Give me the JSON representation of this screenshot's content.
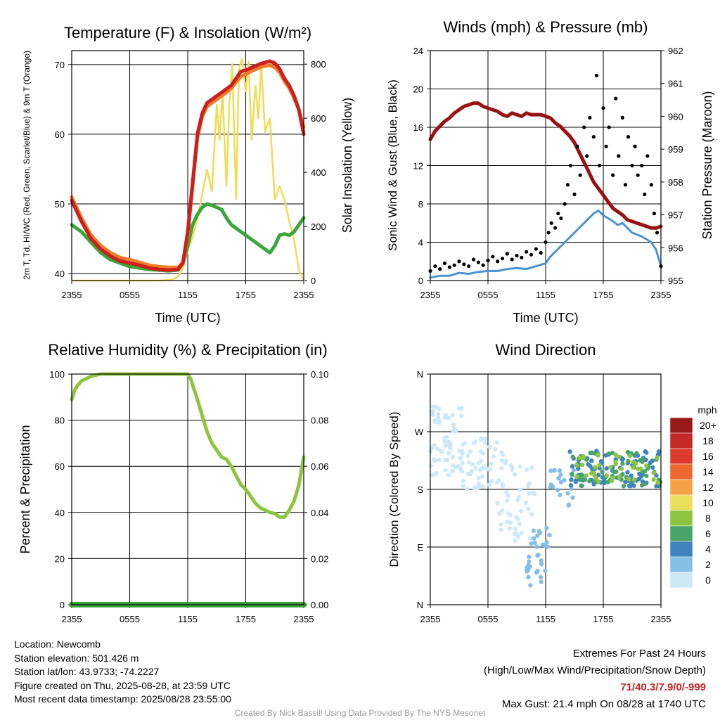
{
  "colors": {
    "temp": "#cc1f1f",
    "nine_m": "#f07b28",
    "dewpoint": "#3aa63a",
    "insolation": "#f1dc55",
    "wind": "#4b93d1",
    "gust": "#000000",
    "pressure": "#991111",
    "rh": "#8cc63f",
    "precip": "#3aa03a"
  },
  "info": {
    "location": "Location: Newcomb",
    "elevation": "Station elevation: 501.426 m",
    "latlon": "Station lat/lon: 43.9733; -74.2227",
    "created": "Figure created on Thu, 2025-08-28, at 23:59 UTC",
    "recent": "Most recent data timestamp: 2025/08/28 23:55:00"
  },
  "extremes": {
    "title": "Extremes For Past 24 Hours",
    "subtitle": "(High/Low/Max Wind/Precipitation/Snow Depth)",
    "values": "71/40.3/7.9/0/-999",
    "gust": "Max Gust: 21.4 mph On 08/28 at 1740 UTC"
  },
  "credit": "Created By Nick Bassill Using Data Provided By The NYS Mesonet",
  "chart_data": [
    {
      "type": "line",
      "title": "Temperature (F) & Insolation (W/m²)",
      "xlabel": "Time (UTC)",
      "ylabel": "2m T, Td, HI/WC (Red, Green, Scarlet/Blue) & 9m T (Orange)",
      "ylabel2": "Solar Insolation (Yellow)",
      "x_ticks": [
        "2355",
        "0555",
        "1155",
        "1755",
        "2355"
      ],
      "ylim": [
        39,
        72
      ],
      "y_ticks": [
        40,
        50,
        60,
        70
      ],
      "ylim2": [
        0,
        850
      ],
      "y2_ticks": [
        0,
        200,
        400,
        600,
        800
      ],
      "grid": true,
      "series": [
        {
          "key": "temp",
          "axis": "left",
          "x": [
            0,
            1,
            2,
            3,
            4,
            5,
            6,
            7,
            8,
            9,
            10,
            11,
            11.5,
            12,
            12.5,
            13,
            13.5,
            14,
            15,
            15.5,
            16,
            16.5,
            17,
            17.5,
            18,
            18.5,
            19,
            19.5,
            20,
            20.5,
            21,
            21.5,
            22,
            22.5,
            23,
            23.5,
            24
          ],
          "y": [
            50.5,
            47.5,
            45,
            43.5,
            42.5,
            41.8,
            41.5,
            41.2,
            40.8,
            40.6,
            40.5,
            40.6,
            41.5,
            46,
            53,
            60,
            63,
            64.5,
            65.5,
            66,
            66.5,
            67,
            68,
            69,
            69.2,
            69.5,
            69.8,
            70.1,
            70.3,
            70.5,
            70.2,
            69.4,
            68,
            67,
            65.5,
            63.5,
            60
          ]
        },
        {
          "key": "nine_m",
          "axis": "left",
          "x": [
            0,
            1,
            2,
            3,
            4,
            5,
            6,
            7,
            8,
            9,
            10,
            11,
            11.5,
            12,
            12.5,
            13,
            13.5,
            14,
            15,
            15.5,
            16,
            16.5,
            17,
            17.5,
            18,
            18.5,
            19,
            19.5,
            20,
            20.5,
            21,
            21.5,
            22,
            22.5,
            23,
            23.5,
            24
          ],
          "y": [
            51,
            48,
            45.5,
            44,
            43,
            42.3,
            42,
            41.6,
            41.2,
            41,
            40.9,
            40.9,
            41.6,
            45.5,
            52.5,
            59.5,
            62.5,
            64,
            65,
            65.5,
            66,
            66.6,
            67.5,
            68.3,
            68.6,
            69,
            69.3,
            69.6,
            69.8,
            69.9,
            69.6,
            68.9,
            67.6,
            66.6,
            65.2,
            63.5,
            61
          ]
        },
        {
          "key": "dewpoint",
          "axis": "left",
          "x": [
            0,
            1,
            2,
            3,
            4,
            5,
            6,
            7,
            8,
            9,
            10,
            11,
            11.5,
            12,
            12.5,
            13,
            13.5,
            14,
            14.5,
            15,
            15.5,
            16,
            16.5,
            17,
            17.5,
            18,
            18.5,
            19,
            19.5,
            20,
            20.5,
            21,
            21.5,
            22,
            22.5,
            23,
            23.5,
            24
          ],
          "y": [
            47,
            46,
            44.5,
            43,
            42,
            41.5,
            41,
            40.8,
            40.6,
            40.5,
            40.4,
            40.5,
            41.5,
            44,
            47,
            48.5,
            49.5,
            50,
            49.8,
            49.5,
            49.2,
            48,
            47,
            46.5,
            46,
            45.5,
            45,
            44.5,
            44,
            43.5,
            43,
            44,
            45.5,
            45.7,
            45.5,
            46,
            47,
            48
          ]
        },
        {
          "key": "insolation",
          "axis": "right",
          "x": [
            0,
            9,
            10,
            10.5,
            11,
            11.5,
            12,
            12.5,
            13,
            13.5,
            14,
            14.5,
            15,
            15.3,
            15.6,
            16,
            16.3,
            16.6,
            17,
            17.3,
            17.6,
            18,
            18.3,
            18.6,
            19,
            19.3,
            19.6,
            20,
            20.5,
            21,
            21.5,
            22,
            22.5,
            23,
            23.5,
            24
          ],
          "y": [
            0,
            0,
            2,
            5,
            15,
            45,
            110,
            160,
            230,
            320,
            410,
            330,
            650,
            520,
            700,
            350,
            650,
            800,
            300,
            780,
            820,
            700,
            810,
            520,
            720,
            600,
            800,
            550,
            600,
            300,
            350,
            300,
            220,
            150,
            40,
            0
          ]
        }
      ]
    },
    {
      "type": "line",
      "title": "Winds (mph) & Pressure (mb)",
      "xlabel": "Time (UTC)",
      "ylabel": "Sonic Wind & Gust (Blue, Black)",
      "ylabel2": "Station Pressure (Maroon)",
      "x_ticks": [
        "2355",
        "0555",
        "1155",
        "1755",
        "2355"
      ],
      "ylim": [
        0,
        24
      ],
      "y_ticks": [
        0,
        4,
        8,
        12,
        16,
        20,
        24
      ],
      "ylim2": [
        955,
        962
      ],
      "y2_ticks": [
        955,
        956,
        957,
        958,
        959,
        960,
        961,
        962
      ],
      "grid": true,
      "series": [
        {
          "key": "wind",
          "name": "Sonic Wind",
          "axis": "left",
          "x": [
            0,
            1,
            2,
            3,
            4,
            5,
            6,
            7,
            8,
            9,
            10,
            11,
            12,
            12.5,
            13,
            13.5,
            14,
            14.5,
            15,
            15.5,
            16,
            16.5,
            17,
            17.5,
            18,
            18.5,
            19,
            19.5,
            20,
            20.5,
            21,
            21.5,
            22,
            22.5,
            23,
            23.5,
            24
          ],
          "y": [
            0.3,
            0.5,
            0.5,
            0.8,
            0.7,
            0.9,
            1,
            1,
            1.2,
            1.3,
            1.2,
            1.5,
            1.8,
            2.5,
            3,
            3.5,
            4,
            4.5,
            5,
            5.5,
            6,
            6.5,
            7,
            7.3,
            6.8,
            6.5,
            6.2,
            5.8,
            6,
            5.5,
            5,
            4.8,
            4.6,
            4.3,
            4,
            3.2,
            1.5
          ]
        },
        {
          "key": "gust",
          "name": "Gust",
          "axis": "left",
          "x": [
            0,
            0.5,
            1,
            1.5,
            2,
            2.5,
            3,
            3.5,
            4,
            4.5,
            5,
            5.5,
            6,
            6.5,
            7,
            7.5,
            8,
            8.5,
            9,
            9.5,
            10,
            10.5,
            11,
            11.5,
            12,
            12.3,
            12.6,
            13,
            13.3,
            13.6,
            14,
            14.3,
            14.6,
            15,
            15.3,
            15.6,
            16,
            16.3,
            16.6,
            17,
            17.3,
            17.6,
            18,
            18.3,
            18.6,
            19,
            19.3,
            19.6,
            20,
            20.3,
            20.6,
            21,
            21.3,
            21.6,
            22,
            22.3,
            22.6,
            23,
            23.3,
            23.6,
            24
          ],
          "y": [
            1,
            1.5,
            1.2,
            1.8,
            1.4,
            1.6,
            2,
            1.7,
            1.5,
            2.2,
            1.9,
            1.6,
            2.1,
            2.5,
            2,
            2.3,
            2.8,
            2.2,
            2.6,
            2.4,
            3,
            2.7,
            3.3,
            2.9,
            4,
            5,
            6,
            5.5,
            7,
            6.5,
            8,
            10,
            12,
            9,
            14,
            11,
            16,
            13,
            17,
            15,
            21.4,
            12,
            18,
            14,
            16,
            11,
            19,
            13,
            17,
            10,
            15,
            12,
            14,
            11,
            12,
            9,
            13,
            10,
            7,
            5,
            1.5
          ]
        },
        {
          "key": "pressure",
          "name": "Pressure",
          "axis": "right",
          "x": [
            0,
            0.5,
            1,
            1.5,
            2,
            2.5,
            3,
            3.5,
            4,
            4.5,
            5,
            5.5,
            6,
            6.5,
            7,
            7.5,
            8,
            8.5,
            9,
            9.5,
            10,
            10.5,
            11,
            11.5,
            12,
            12.5,
            13,
            13.5,
            14,
            14.5,
            15,
            15.5,
            16,
            16.5,
            17,
            17.5,
            18,
            18.5,
            19,
            19.5,
            20,
            20.5,
            21,
            21.5,
            22,
            22.5,
            23,
            23.5,
            24
          ],
          "y": [
            959.3,
            959.55,
            959.7,
            959.85,
            959.95,
            960.1,
            960.2,
            960.3,
            960.35,
            960.4,
            960.4,
            960.3,
            960.25,
            960.2,
            960.15,
            960.05,
            960,
            960.1,
            960.05,
            960,
            960.1,
            960.05,
            960.05,
            960.05,
            960.0,
            959.95,
            959.8,
            959.7,
            959.55,
            959.4,
            959.2,
            958.9,
            958.6,
            958.3,
            958.0,
            957.8,
            957.6,
            957.4,
            957.2,
            957.1,
            957.0,
            956.85,
            956.8,
            956.75,
            956.7,
            956.65,
            956.6,
            956.6,
            956.65
          ]
        }
      ]
    },
    {
      "type": "line",
      "title": "Relative Humidity (%) & Precipitation (in)",
      "xlabel": "",
      "ylabel": "Percent & Precipitation",
      "x_ticks": [
        "2355",
        "0555",
        "1155",
        "1755",
        "2355"
      ],
      "ylim": [
        0,
        100
      ],
      "y_ticks": [
        0,
        20,
        40,
        60,
        80,
        100
      ],
      "ylim2": [
        0,
        0.1
      ],
      "y2_ticks": [
        "0.00",
        "0.02",
        "0.04",
        "0.06",
        "0.08",
        "0.10"
      ],
      "grid": true,
      "series": [
        {
          "key": "rh",
          "name": "Relative Humidity",
          "axis": "left",
          "x": [
            0,
            0.3,
            0.6,
            1,
            1.5,
            2,
            2.5,
            3,
            4,
            5,
            6,
            7,
            8,
            9,
            10,
            11,
            12,
            12.3,
            12.6,
            13,
            13.5,
            14,
            14.5,
            15,
            15.5,
            16,
            16.5,
            17,
            17.5,
            18,
            18.5,
            19,
            19.5,
            20,
            20.5,
            21,
            21.5,
            22,
            22.5,
            23,
            23.5,
            24
          ],
          "y": [
            89,
            93,
            95,
            97,
            98,
            99,
            99.5,
            100,
            100,
            100,
            100,
            100,
            100,
            100,
            100,
            100,
            100,
            98,
            94,
            89,
            82,
            75,
            70,
            67,
            64,
            63,
            60,
            56,
            52,
            50,
            47,
            44,
            42,
            41,
            40,
            39.5,
            38,
            38,
            41,
            45,
            52,
            64
          ]
        },
        {
          "key": "precip",
          "name": "Precipitation",
          "axis": "right",
          "x": [
            0,
            24
          ],
          "y": [
            0,
            0
          ]
        }
      ]
    },
    {
      "type": "scatter",
      "title": "Wind Direction",
      "ylabel": "Direction (Colored By Speed)",
      "x_ticks": [
        "2355",
        "0555",
        "1155",
        "1755",
        "2355"
      ],
      "y_ticks": [
        "N",
        "E",
        "S",
        "W",
        "N"
      ],
      "ylim": [
        0,
        360
      ],
      "colorbar": {
        "unit": "mph",
        "labels": [
          "20+",
          "18",
          "16",
          "14",
          "12",
          "10",
          "8",
          "6",
          "4",
          "2",
          "0"
        ],
        "colors": [
          "#991919",
          "#c62828",
          "#de3a2c",
          "#ee6630",
          "#f6a244",
          "#eade5a",
          "#8cc63f",
          "#48a468",
          "#3f83bf",
          "#86bfe6",
          "#cde9f8"
        ]
      },
      "clusters": [
        {
          "x0": 0,
          "x1": 3.5,
          "y0": 200,
          "y1": 310,
          "n": 60,
          "colorIdx": 10
        },
        {
          "x0": 3,
          "x1": 8,
          "y0": 180,
          "y1": 260,
          "n": 60,
          "colorIdx": 10
        },
        {
          "x0": 7,
          "x1": 11,
          "y0": 100,
          "y1": 220,
          "n": 45,
          "colorIdx": 10
        },
        {
          "x0": 10,
          "x1": 12.5,
          "y0": 30,
          "y1": 120,
          "n": 35,
          "colorIdx": 9
        },
        {
          "x0": 12.5,
          "x1": 15,
          "y0": 150,
          "y1": 225,
          "n": 20,
          "colorIdx": 9
        },
        {
          "x0": 14.5,
          "x1": 24,
          "y0": 185,
          "y1": 240,
          "n": 90,
          "colorIdx": 8
        },
        {
          "x0": 14.5,
          "x1": 24,
          "y0": 185,
          "y1": 240,
          "n": 50,
          "colorIdx": 7
        },
        {
          "x0": 15,
          "x1": 24,
          "y0": 190,
          "y1": 235,
          "n": 40,
          "colorIdx": 6
        }
      ]
    }
  ]
}
